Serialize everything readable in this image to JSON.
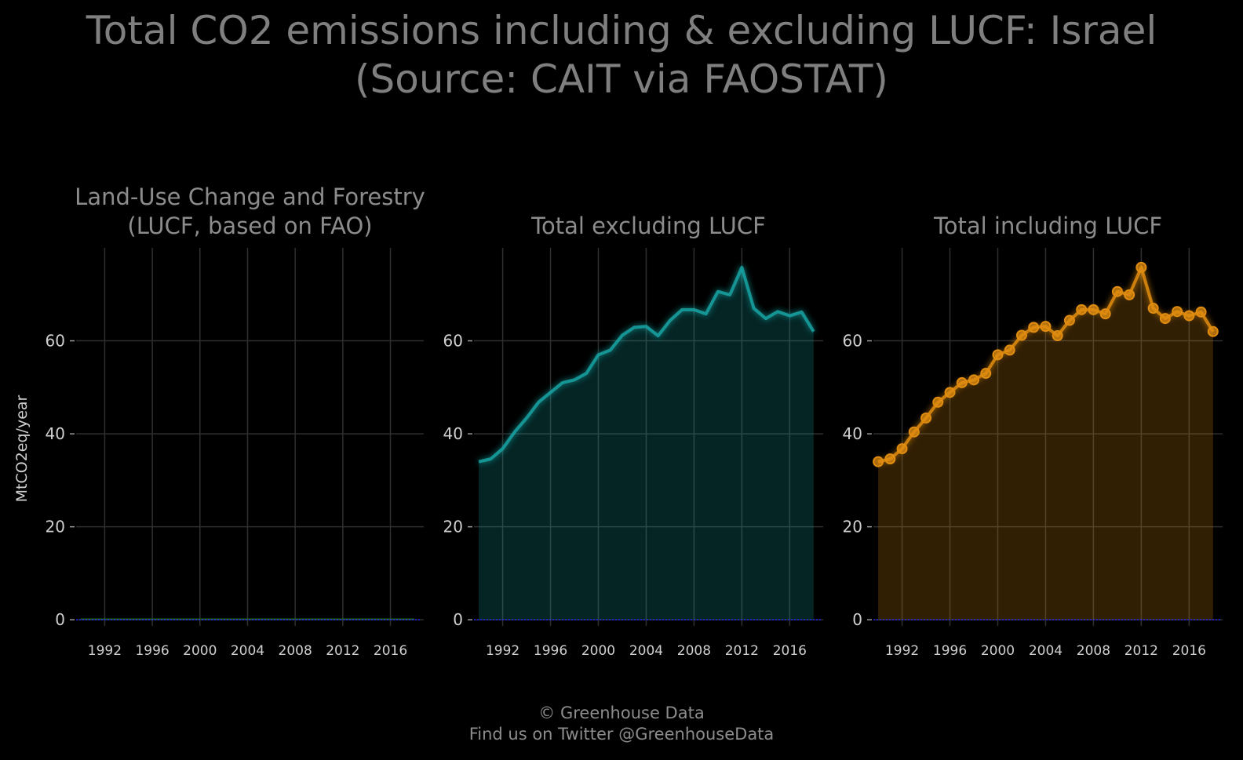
{
  "title": {
    "line1": "Total CO2 emissions including & excluding LUCF: Israel",
    "line2": "(Source: CAIT via FAOSTAT)"
  },
  "footer": {
    "line1": "© Greenhouse Data",
    "line2": "Find us on Twitter @GreenhouseData"
  },
  "chart_data": [
    {
      "type": "area",
      "title": [
        "Land-Use Change and Forestry",
        "(LUCF, based on FAO)"
      ],
      "ylabel": "MtCO2eq/year",
      "xlabel": "",
      "x": [
        1990,
        1991,
        1992,
        1993,
        1994,
        1995,
        1996,
        1997,
        1998,
        1999,
        2000,
        2001,
        2002,
        2003,
        2004,
        2005,
        2006,
        2007,
        2008,
        2009,
        2010,
        2011,
        2012,
        2013,
        2014,
        2015,
        2016,
        2017,
        2018
      ],
      "series": [
        {
          "values": [
            0.1,
            0.1,
            0.1,
            0.1,
            0.1,
            0.1,
            0.1,
            0.1,
            0.1,
            0.1,
            0.1,
            0.1,
            0.1,
            0.1,
            0.1,
            0.1,
            0.1,
            0.1,
            0.1,
            0.1,
            0.1,
            0.1,
            0.1,
            0.1,
            0.1,
            0.1,
            0.2,
            0.2,
            0.2
          ],
          "color": "#1f6f2a"
        }
      ],
      "xticks": [
        "1992",
        "1996",
        "2000",
        "2004",
        "2008",
        "2012",
        "2016"
      ],
      "yticks": [
        "0",
        "20",
        "40",
        "60"
      ],
      "ylim": [
        -3,
        80
      ],
      "grid": true,
      "markers": false,
      "zero_line_color": "#2020ff"
    },
    {
      "type": "area",
      "title": [
        "Total excluding LUCF"
      ],
      "ylabel": "",
      "xlabel": "",
      "x": [
        1990,
        1991,
        1992,
        1993,
        1994,
        1995,
        1996,
        1997,
        1998,
        1999,
        2000,
        2001,
        2002,
        2003,
        2004,
        2005,
        2006,
        2007,
        2008,
        2009,
        2010,
        2011,
        2012,
        2013,
        2014,
        2015,
        2016,
        2017,
        2018
      ],
      "series": [
        {
          "values": [
            34.0,
            34.6,
            36.8,
            40.4,
            43.4,
            46.8,
            48.9,
            51.0,
            51.6,
            53.0,
            57.0,
            58.0,
            61.2,
            62.9,
            63.1,
            61.1,
            64.4,
            66.7,
            66.7,
            65.8,
            70.6,
            69.9,
            75.8,
            67.0,
            64.8,
            66.3,
            65.4,
            66.2,
            62.0
          ],
          "color": "#16a3a3"
        }
      ],
      "xticks": [
        "1992",
        "1996",
        "2000",
        "2004",
        "2008",
        "2012",
        "2016"
      ],
      "yticks": [
        "0",
        "20",
        "40",
        "60"
      ],
      "ylim": [
        -3,
        80
      ],
      "grid": true,
      "markers": false,
      "zero_line_color": "#2020ff"
    },
    {
      "type": "area",
      "title": [
        "Total including LUCF"
      ],
      "ylabel": "",
      "xlabel": "",
      "x": [
        1990,
        1991,
        1992,
        1993,
        1994,
        1995,
        1996,
        1997,
        1998,
        1999,
        2000,
        2001,
        2002,
        2003,
        2004,
        2005,
        2006,
        2007,
        2008,
        2009,
        2010,
        2011,
        2012,
        2013,
        2014,
        2015,
        2016,
        2017,
        2018
      ],
      "series": [
        {
          "values": [
            34.0,
            34.6,
            36.8,
            40.4,
            43.4,
            46.8,
            48.9,
            51.0,
            51.6,
            53.0,
            57.0,
            58.0,
            61.2,
            62.9,
            63.1,
            61.1,
            64.4,
            66.7,
            66.7,
            65.8,
            70.6,
            69.9,
            75.8,
            67.0,
            64.8,
            66.3,
            65.4,
            66.2,
            62.0
          ],
          "color": "#e08c10"
        }
      ],
      "xticks": [
        "1992",
        "1996",
        "2000",
        "2004",
        "2008",
        "2012",
        "2016"
      ],
      "yticks": [
        "0",
        "20",
        "40",
        "60"
      ],
      "ylim": [
        -3,
        80
      ],
      "grid": true,
      "markers": true,
      "zero_line_color": "#2020ff"
    }
  ]
}
